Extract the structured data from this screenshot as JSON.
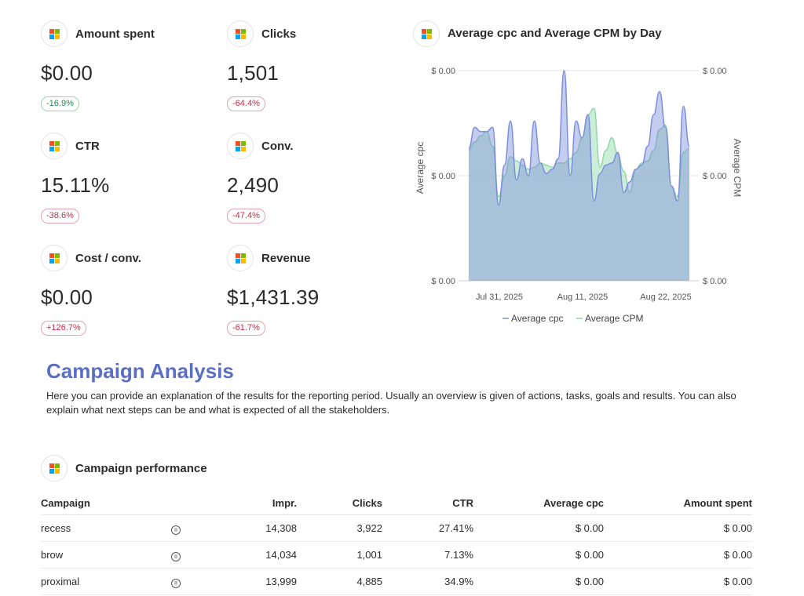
{
  "kpis": [
    {
      "label": "Amount spent",
      "value": "$0.00",
      "change": "-16.9%",
      "trend": "good"
    },
    {
      "label": "Clicks",
      "value": "1,501",
      "change": "-64.4%",
      "trend": "bad"
    },
    {
      "label": "CTR",
      "value": "15.11%",
      "change": "-38.6%",
      "trend": "bad"
    },
    {
      "label": "Conv.",
      "value": "2,490",
      "change": "-47.4%",
      "trend": "bad"
    },
    {
      "label": "Cost / conv.",
      "value": "$0.00",
      "change": "+126.7%",
      "trend": "bad"
    },
    {
      "label": "Revenue",
      "value": "$1,431.39",
      "change": "-61.7%",
      "trend": "bad"
    }
  ],
  "chart": {
    "title": "Average cpc and Average CPM by Day",
    "y_left_label": "Average cpc",
    "y_right_label": "Average CPM",
    "y_tick_labels": [
      "$ 0.00",
      "$ 0.00",
      "$ 0.00"
    ],
    "x_tick_labels": [
      "Jul 31, 2025",
      "Aug 11, 2025",
      "Aug 22, 2025"
    ],
    "legend": [
      "Average cpc",
      "Average CPM"
    ]
  },
  "chart_data": {
    "type": "area",
    "title": "Average cpc and Average CPM by Day",
    "xlabel": "",
    "ylabel": "Average cpc",
    "ylabel_right": "Average CPM",
    "x_ticks": [
      "Jul 31, 2025",
      "Aug 11, 2025",
      "Aug 22, 2025"
    ],
    "y_ticks": [
      "$ 0.00",
      "$ 0.00",
      "$ 0.00"
    ],
    "ylim": [
      0,
      1
    ],
    "grid": true,
    "legend_position": "bottom",
    "colors": {
      "cpc": "#7d8fdc",
      "cpm": "#8ed9a8"
    },
    "series": [
      {
        "name": "Average cpc",
        "values": [
          0.63,
          0.73,
          0.71,
          0.71,
          0.73,
          0.36,
          0.55,
          0.76,
          0.48,
          0.58,
          0.5,
          0.76,
          0.56,
          0.51,
          0.53,
          0.58,
          1.0,
          0.5,
          0.76,
          0.68,
          0.79,
          0.38,
          0.51,
          0.55,
          0.56,
          0.61,
          0.42,
          0.47,
          0.53,
          0.55,
          0.64,
          0.79,
          0.9,
          0.73,
          0.45,
          0.38,
          0.83,
          0.64
        ]
      },
      {
        "name": "Average CPM",
        "values": [
          0.62,
          0.66,
          0.69,
          0.71,
          0.64,
          0.4,
          0.5,
          0.59,
          0.57,
          0.55,
          0.53,
          0.54,
          0.56,
          0.55,
          0.54,
          0.56,
          0.56,
          0.58,
          0.61,
          0.68,
          0.79,
          0.82,
          0.54,
          0.62,
          0.68,
          0.6,
          0.52,
          0.42,
          0.53,
          0.56,
          0.57,
          0.62,
          0.72,
          0.74,
          0.45,
          0.4,
          0.61,
          0.63
        ]
      }
    ]
  },
  "section": {
    "title": "Campaign Analysis",
    "text": "Here you can provide an explanation of the results for the reporting period. Usually an overview is given of actions, tasks, goals and results. You can also explain what next steps can be and what is expected of all the stakeholders."
  },
  "performance": {
    "title": "Campaign performance",
    "columns": [
      "Campaign",
      "",
      "Impr.",
      "Clicks",
      "CTR",
      "Average cpc",
      "Amount spent"
    ],
    "rows": [
      {
        "campaign": "recess",
        "icon": "pause-circle-icon",
        "impr": "14,308",
        "clicks": "3,922",
        "ctr": "27.41%",
        "cpc": "$ 0.00",
        "spent": "$ 0.00"
      },
      {
        "campaign": "brow",
        "icon": "pause-circle-icon",
        "impr": "14,034",
        "clicks": "1,001",
        "ctr": "7.13%",
        "cpc": "$ 0.00",
        "spent": "$ 0.00"
      },
      {
        "campaign": "proximal",
        "icon": "pause-circle-icon",
        "impr": "13,999",
        "clicks": "4,885",
        "ctr": "34.9%",
        "cpc": "$ 0.00",
        "spent": "$ 0.00"
      }
    ]
  }
}
